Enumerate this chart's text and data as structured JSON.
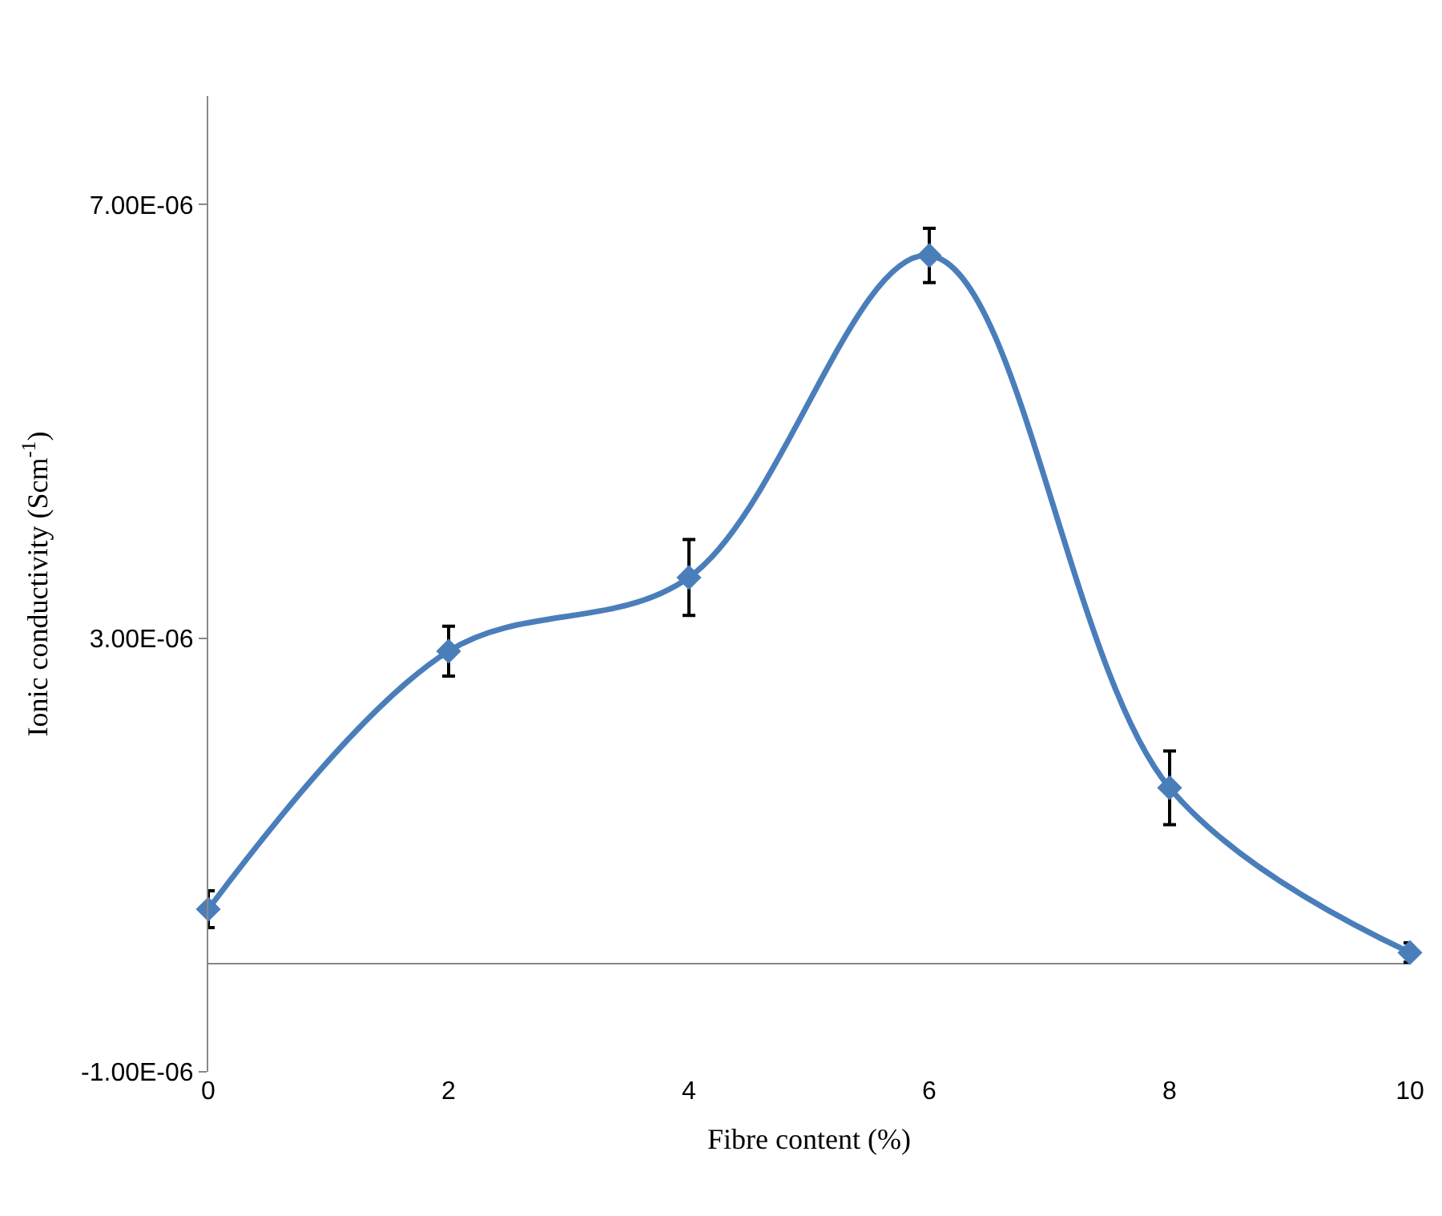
{
  "chart_data": {
    "type": "line",
    "xlabel": "Fibre content (%)",
    "ylabel": "Ionic conductivity (Scm$^{-1}$)",
    "x": [
      0,
      2,
      4,
      6,
      8,
      10
    ],
    "series": [
      {
        "color": "#4a7ebb",
        "values": [
          5e-07,
          2.88e-06,
          3.56e-06,
          6.53e-06,
          1.62e-06,
          1e-07
        ],
        "errors": [
          1.7e-07,
          2.3e-07,
          3.5e-07,
          2.5e-07,
          3.4e-07,
          9e-08
        ]
      }
    ],
    "xlim": [
      0,
      10
    ],
    "xticks": [
      0,
      2,
      4,
      6,
      8,
      10
    ],
    "ylim": [
      -1e-06,
      8e-06
    ],
    "yticks": [
      {
        "value": -1e-06,
        "label": "-1.00E-06"
      },
      {
        "value": 3e-06,
        "label": "3.00E-06"
      },
      {
        "value": 7e-06,
        "label": "7.00E-06"
      }
    ],
    "marker": "diamond",
    "line_style": "solid",
    "legend": false
  }
}
